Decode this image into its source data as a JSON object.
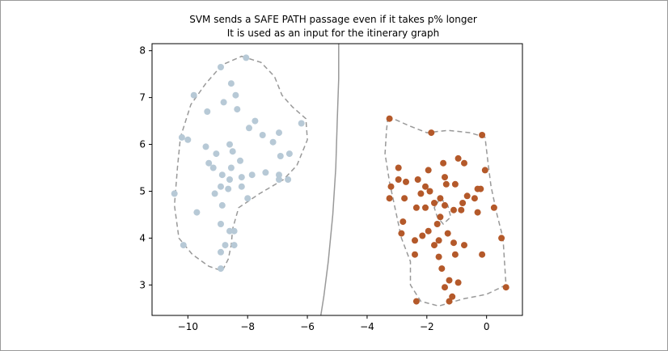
{
  "chart_data": {
    "type": "scatter",
    "title": "SVM sends a SAFE PATH passage even if it takes p% longer",
    "subtitle": "It is used as an input for the itinerary graph",
    "xlabel": "",
    "ylabel": "",
    "xlim": [
      -11.2,
      1.2
    ],
    "ylim": [
      2.35,
      8.15
    ],
    "x_ticks": [
      -10,
      -8,
      -6,
      -4,
      -2,
      0
    ],
    "x_tick_labels": [
      "−10",
      "−8",
      "−6",
      "−4",
      "−2",
      "0"
    ],
    "y_ticks": [
      3,
      4,
      5,
      6,
      7,
      8
    ],
    "y_tick_labels": [
      "3",
      "4",
      "5",
      "6",
      "7",
      "8"
    ],
    "grid": false,
    "colors": {
      "class_a": "#b7c9d6",
      "class_b": "#b4592a",
      "boundary": "#999999",
      "margin": "#999999"
    },
    "series": [
      {
        "points": [
          [
            -8.9,
            7.65
          ],
          [
            -8.05,
            7.85
          ],
          [
            -9.8,
            7.05
          ],
          [
            -8.55,
            7.3
          ],
          [
            -8.4,
            7.05
          ],
          [
            -8.8,
            6.9
          ],
          [
            -9.35,
            6.7
          ],
          [
            -8.35,
            6.75
          ],
          [
            -7.75,
            6.5
          ],
          [
            -7.95,
            6.35
          ],
          [
            -7.5,
            6.2
          ],
          [
            -6.95,
            6.25
          ],
          [
            -6.2,
            6.45
          ],
          [
            -10.2,
            6.15
          ],
          [
            -10.0,
            6.1
          ],
          [
            -9.4,
            5.95
          ],
          [
            -8.6,
            6.0
          ],
          [
            -8.5,
            5.85
          ],
          [
            -7.15,
            6.05
          ],
          [
            -6.9,
            5.75
          ],
          [
            -6.6,
            5.8
          ],
          [
            -9.05,
            5.8
          ],
          [
            -8.25,
            5.65
          ],
          [
            -7.85,
            5.35
          ],
          [
            -7.4,
            5.4
          ],
          [
            -6.95,
            5.35
          ],
          [
            -9.3,
            5.6
          ],
          [
            -9.15,
            5.5
          ],
          [
            -8.55,
            5.5
          ],
          [
            -8.85,
            5.35
          ],
          [
            -8.2,
            5.3
          ],
          [
            -8.6,
            5.25
          ],
          [
            -6.95,
            5.25
          ],
          [
            -6.65,
            5.25
          ],
          [
            -8.9,
            5.1
          ],
          [
            -8.2,
            5.1
          ],
          [
            -8.65,
            5.05
          ],
          [
            -9.1,
            4.95
          ],
          [
            -10.45,
            4.95
          ],
          [
            -8.0,
            4.85
          ],
          [
            -8.85,
            4.7
          ],
          [
            -9.7,
            4.55
          ],
          [
            -8.9,
            4.3
          ],
          [
            -8.6,
            4.15
          ],
          [
            -8.45,
            4.15
          ],
          [
            -8.75,
            3.85
          ],
          [
            -8.45,
            3.85
          ],
          [
            -10.15,
            3.85
          ],
          [
            -8.9,
            3.7
          ],
          [
            -8.9,
            3.35
          ]
        ]
      },
      {
        "points": [
          [
            -3.25,
            6.55
          ],
          [
            -1.85,
            6.25
          ],
          [
            -0.15,
            6.2
          ],
          [
            -2.95,
            5.5
          ],
          [
            -1.45,
            5.6
          ],
          [
            -0.95,
            5.7
          ],
          [
            -0.75,
            5.6
          ],
          [
            -0.05,
            5.45
          ],
          [
            -1.95,
            5.45
          ],
          [
            -1.4,
            5.3
          ],
          [
            -2.95,
            5.25
          ],
          [
            -2.7,
            5.2
          ],
          [
            -2.3,
            5.25
          ],
          [
            -1.35,
            5.15
          ],
          [
            -1.05,
            5.15
          ],
          [
            -3.2,
            5.1
          ],
          [
            -2.05,
            5.1
          ],
          [
            -1.9,
            5.0
          ],
          [
            -0.3,
            5.05
          ],
          [
            -0.2,
            5.05
          ],
          [
            -2.2,
            4.95
          ],
          [
            -1.55,
            4.85
          ],
          [
            -0.65,
            4.9
          ],
          [
            -0.4,
            4.85
          ],
          [
            -3.25,
            4.85
          ],
          [
            -2.75,
            4.85
          ],
          [
            -1.75,
            4.75
          ],
          [
            -0.8,
            4.75
          ],
          [
            -1.4,
            4.7
          ],
          [
            -2.05,
            4.65
          ],
          [
            -2.35,
            4.65
          ],
          [
            -0.85,
            4.6
          ],
          [
            -0.3,
            4.55
          ],
          [
            0.25,
            4.65
          ],
          [
            -1.1,
            4.6
          ],
          [
            -1.55,
            4.45
          ],
          [
            -2.8,
            4.35
          ],
          [
            -1.65,
            4.3
          ],
          [
            -1.95,
            4.15
          ],
          [
            -1.3,
            4.1
          ],
          [
            -2.85,
            4.1
          ],
          [
            -2.15,
            4.05
          ],
          [
            -1.6,
            3.95
          ],
          [
            -1.75,
            3.85
          ],
          [
            -0.75,
            3.85
          ],
          [
            -1.1,
            3.9
          ],
          [
            -2.4,
            3.95
          ],
          [
            0.5,
            4.0
          ],
          [
            -1.6,
            3.6
          ],
          [
            -2.4,
            3.65
          ],
          [
            -1.05,
            3.65
          ],
          [
            -0.15,
            3.65
          ],
          [
            -1.5,
            3.35
          ],
          [
            -1.25,
            3.1
          ],
          [
            -0.95,
            3.05
          ],
          [
            -1.4,
            2.95
          ],
          [
            0.65,
            2.95
          ],
          [
            -1.15,
            2.75
          ],
          [
            -1.25,
            2.65
          ],
          [
            -2.35,
            2.65
          ]
        ]
      }
    ],
    "decision_boundary": [
      [
        -4.95,
        8.15
      ],
      [
        -4.95,
        7.4
      ],
      [
        -5.0,
        6.5
      ],
      [
        -5.05,
        5.5
      ],
      [
        -5.15,
        4.5
      ],
      [
        -5.3,
        3.5
      ],
      [
        -5.45,
        2.75
      ],
      [
        -5.55,
        2.35
      ]
    ],
    "margin_contours": [
      [
        [
          -8.2,
          7.88
        ],
        [
          -7.55,
          7.75
        ],
        [
          -7.1,
          7.45
        ],
        [
          -6.85,
          7.05
        ],
        [
          -6.5,
          6.8
        ],
        [
          -6.05,
          6.55
        ],
        [
          -6.0,
          6.1
        ],
        [
          -6.35,
          5.55
        ],
        [
          -6.8,
          5.25
        ],
        [
          -7.6,
          4.95
        ],
        [
          -8.3,
          4.65
        ],
        [
          -8.5,
          4.2
        ],
        [
          -8.55,
          3.85
        ],
        [
          -8.65,
          3.55
        ],
        [
          -8.85,
          3.3
        ],
        [
          -9.3,
          3.4
        ],
        [
          -9.85,
          3.65
        ],
        [
          -10.3,
          4.0
        ],
        [
          -10.45,
          4.7
        ],
        [
          -10.35,
          5.5
        ],
        [
          -10.25,
          6.15
        ],
        [
          -9.9,
          6.85
        ],
        [
          -9.4,
          7.3
        ],
        [
          -8.85,
          7.7
        ],
        [
          -8.2,
          7.88
        ]
      ],
      [
        [
          -3.3,
          6.6
        ],
        [
          -2.6,
          6.4
        ],
        [
          -2.0,
          6.25
        ],
        [
          -1.3,
          6.3
        ],
        [
          -0.55,
          6.25
        ],
        [
          -0.05,
          6.15
        ],
        [
          0.05,
          5.6
        ],
        [
          0.15,
          5.1
        ],
        [
          0.35,
          4.5
        ],
        [
          0.55,
          4.0
        ],
        [
          0.6,
          3.5
        ],
        [
          0.65,
          3.0
        ],
        [
          0.0,
          2.8
        ],
        [
          -0.8,
          2.7
        ],
        [
          -1.6,
          2.55
        ],
        [
          -2.2,
          2.65
        ],
        [
          -2.55,
          3.0
        ],
        [
          -2.55,
          3.5
        ],
        [
          -2.85,
          4.0
        ],
        [
          -3.05,
          4.6
        ],
        [
          -3.25,
          5.2
        ],
        [
          -3.4,
          5.8
        ],
        [
          -3.35,
          6.3
        ],
        [
          -3.3,
          6.6
        ]
      ],
      [
        [
          -1.55,
          4.85
        ],
        [
          -1.3,
          4.7
        ],
        [
          -1.2,
          4.45
        ],
        [
          -1.45,
          4.3
        ],
        [
          -1.65,
          4.45
        ],
        [
          -1.75,
          4.65
        ],
        [
          -1.55,
          4.85
        ]
      ]
    ]
  }
}
